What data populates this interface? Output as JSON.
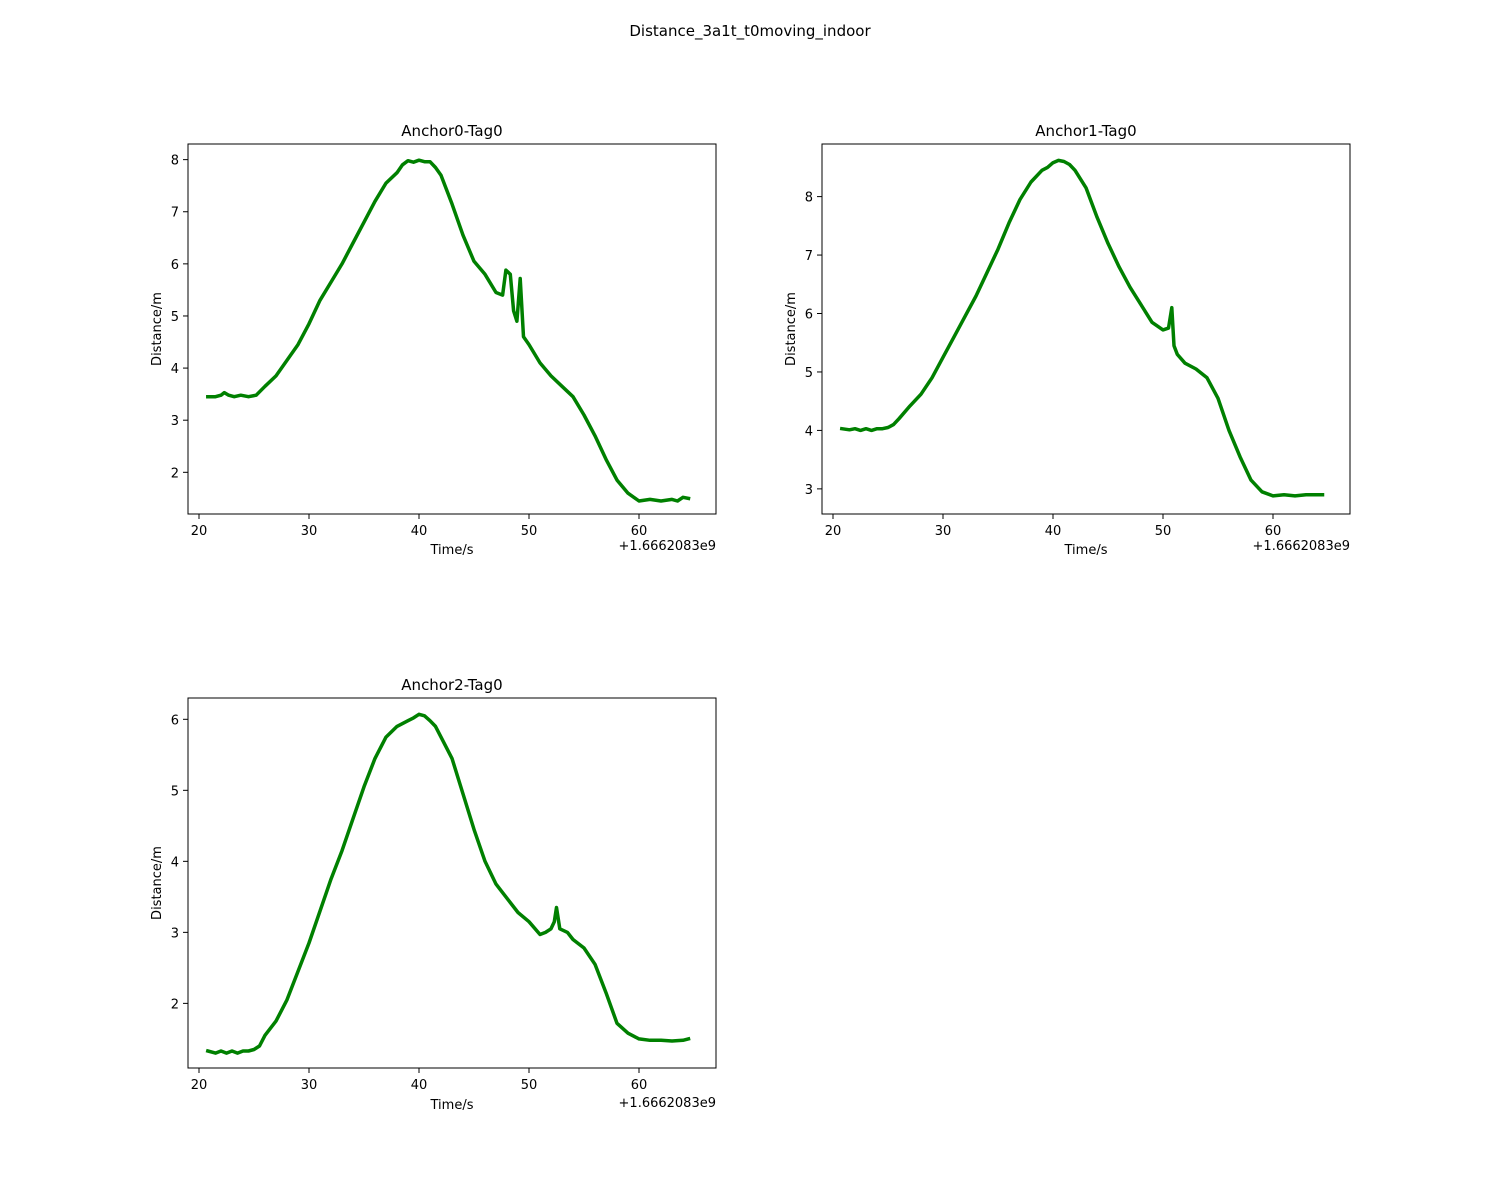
{
  "figure_title": "Distance_3a1t_t0moving_indoor",
  "colors": {
    "line": "#008000",
    "frame": "#000000",
    "background": "#ffffff"
  },
  "chart_data": [
    {
      "type": "line",
      "title": "Anchor0-Tag0",
      "xlabel": "Time/s",
      "ylabel": "Distance/m",
      "x_offset_label": "+1.6662083e9",
      "xlim": [
        19,
        67
      ],
      "ylim": [
        1.2,
        8.3
      ],
      "xticks": [
        20,
        30,
        40,
        50,
        60
      ],
      "xtick_labels": [
        "20",
        "30",
        "40",
        "50",
        "60"
      ],
      "yticks": [
        2,
        3,
        4,
        5,
        6,
        7,
        8
      ],
      "ytick_labels": [
        "2",
        "3",
        "4",
        "5",
        "6",
        "7",
        "8"
      ],
      "grid": false,
      "legend": "none",
      "series": [
        {
          "color": "#008000",
          "x": [
            20.8,
            21.5,
            22.0,
            22.3,
            22.7,
            23.2,
            23.8,
            24.5,
            25.2,
            26.0,
            27.0,
            28.0,
            29.0,
            30.0,
            31.0,
            32.0,
            33.0,
            34.0,
            35.0,
            36.0,
            37.0,
            38.0,
            38.5,
            39.0,
            39.5,
            40.0,
            40.5,
            41.0,
            41.5,
            42.0,
            43.0,
            44.0,
            45.0,
            46.0,
            47.0,
            47.6,
            47.9,
            48.3,
            48.6,
            48.9,
            49.2,
            49.5,
            50.0,
            51.0,
            52.0,
            53.0,
            54.0,
            55.0,
            56.0,
            57.0,
            58.0,
            59.0,
            60.0,
            61.0,
            62.0,
            63.0,
            63.5,
            64.0,
            64.5
          ],
          "y": [
            3.45,
            3.45,
            3.48,
            3.53,
            3.48,
            3.45,
            3.48,
            3.45,
            3.48,
            3.65,
            3.85,
            4.15,
            4.45,
            4.85,
            5.3,
            5.65,
            6.0,
            6.4,
            6.8,
            7.2,
            7.55,
            7.75,
            7.9,
            7.98,
            7.95,
            7.99,
            7.96,
            7.96,
            7.85,
            7.7,
            7.15,
            6.55,
            6.05,
            5.8,
            5.45,
            5.4,
            5.88,
            5.8,
            5.1,
            4.9,
            5.72,
            4.6,
            4.45,
            4.1,
            3.85,
            3.65,
            3.45,
            3.1,
            2.7,
            2.25,
            1.85,
            1.6,
            1.45,
            1.48,
            1.45,
            1.48,
            1.45,
            1.52,
            1.5
          ]
        }
      ]
    },
    {
      "type": "line",
      "title": "Anchor1-Tag0",
      "xlabel": "Time/s",
      "ylabel": "Distance/m",
      "x_offset_label": "+1.6662083e9",
      "xlim": [
        19,
        67
      ],
      "ylim": [
        2.57,
        8.9
      ],
      "xticks": [
        20,
        30,
        40,
        50,
        60
      ],
      "xtick_labels": [
        "20",
        "30",
        "40",
        "50",
        "60"
      ],
      "yticks": [
        3,
        4,
        5,
        6,
        7,
        8
      ],
      "ytick_labels": [
        "3",
        "4",
        "5",
        "6",
        "7",
        "8"
      ],
      "grid": false,
      "legend": "none",
      "series": [
        {
          "color": "#008000",
          "x": [
            20.8,
            21.5,
            22.0,
            22.5,
            23.0,
            23.5,
            24.0,
            24.5,
            25.0,
            25.5,
            26.0,
            27.0,
            28.0,
            29.0,
            30.0,
            31.0,
            32.0,
            33.0,
            34.0,
            35.0,
            36.0,
            37.0,
            38.0,
            39.0,
            39.5,
            40.0,
            40.5,
            41.0,
            41.5,
            42.0,
            43.0,
            44.0,
            45.0,
            46.0,
            47.0,
            48.0,
            49.0,
            50.0,
            50.5,
            50.8,
            51.0,
            51.3,
            52.0,
            53.0,
            54.0,
            55.0,
            56.0,
            57.0,
            58.0,
            59.0,
            60.0,
            61.0,
            62.0,
            63.0,
            64.0,
            64.5
          ],
          "y": [
            4.03,
            4.01,
            4.03,
            4.0,
            4.03,
            4.0,
            4.03,
            4.03,
            4.05,
            4.1,
            4.2,
            4.42,
            4.62,
            4.9,
            5.25,
            5.6,
            5.95,
            6.3,
            6.7,
            7.1,
            7.55,
            7.95,
            8.25,
            8.45,
            8.5,
            8.58,
            8.62,
            8.6,
            8.55,
            8.45,
            8.15,
            7.65,
            7.2,
            6.8,
            6.45,
            6.15,
            5.85,
            5.72,
            5.75,
            6.1,
            5.45,
            5.3,
            5.15,
            5.05,
            4.9,
            4.55,
            4.0,
            3.55,
            3.15,
            2.95,
            2.88,
            2.9,
            2.88,
            2.9,
            2.9,
            2.9
          ]
        }
      ]
    },
    {
      "type": "line",
      "title": "Anchor2-Tag0",
      "xlabel": "Time/s",
      "ylabel": "Distance/m",
      "x_offset_label": "+1.6662083e9",
      "xlim": [
        19,
        67
      ],
      "ylim": [
        1.09,
        6.3
      ],
      "xticks": [
        20,
        30,
        40,
        50,
        60
      ],
      "xtick_labels": [
        "20",
        "30",
        "40",
        "50",
        "60"
      ],
      "yticks": [
        2,
        3,
        4,
        5,
        6
      ],
      "ytick_labels": [
        "2",
        "3",
        "4",
        "5",
        "6"
      ],
      "grid": false,
      "legend": "none",
      "series": [
        {
          "color": "#008000",
          "x": [
            20.8,
            21.5,
            22.0,
            22.5,
            23.0,
            23.5,
            24.0,
            24.5,
            25.0,
            25.5,
            26.0,
            27.0,
            28.0,
            29.0,
            30.0,
            31.0,
            32.0,
            33.0,
            34.0,
            35.0,
            36.0,
            37.0,
            38.0,
            39.0,
            39.5,
            40.0,
            40.5,
            41.0,
            41.5,
            42.0,
            43.0,
            44.0,
            45.0,
            46.0,
            47.0,
            48.0,
            49.0,
            50.0,
            51.0,
            51.5,
            52.0,
            52.3,
            52.5,
            52.8,
            53.5,
            54.0,
            55.0,
            56.0,
            57.0,
            58.0,
            59.0,
            60.0,
            61.0,
            62.0,
            63.0,
            64.0,
            64.5
          ],
          "y": [
            1.33,
            1.3,
            1.33,
            1.3,
            1.33,
            1.3,
            1.33,
            1.33,
            1.35,
            1.4,
            1.55,
            1.75,
            2.05,
            2.45,
            2.85,
            3.3,
            3.75,
            4.15,
            4.6,
            5.05,
            5.45,
            5.75,
            5.9,
            5.98,
            6.02,
            6.07,
            6.05,
            5.98,
            5.9,
            5.75,
            5.45,
            4.95,
            4.45,
            4.0,
            3.68,
            3.48,
            3.28,
            3.15,
            2.97,
            3.0,
            3.05,
            3.15,
            3.35,
            3.05,
            3.0,
            2.9,
            2.78,
            2.55,
            2.15,
            1.72,
            1.58,
            1.5,
            1.48,
            1.48,
            1.47,
            1.48,
            1.5
          ]
        }
      ]
    }
  ]
}
